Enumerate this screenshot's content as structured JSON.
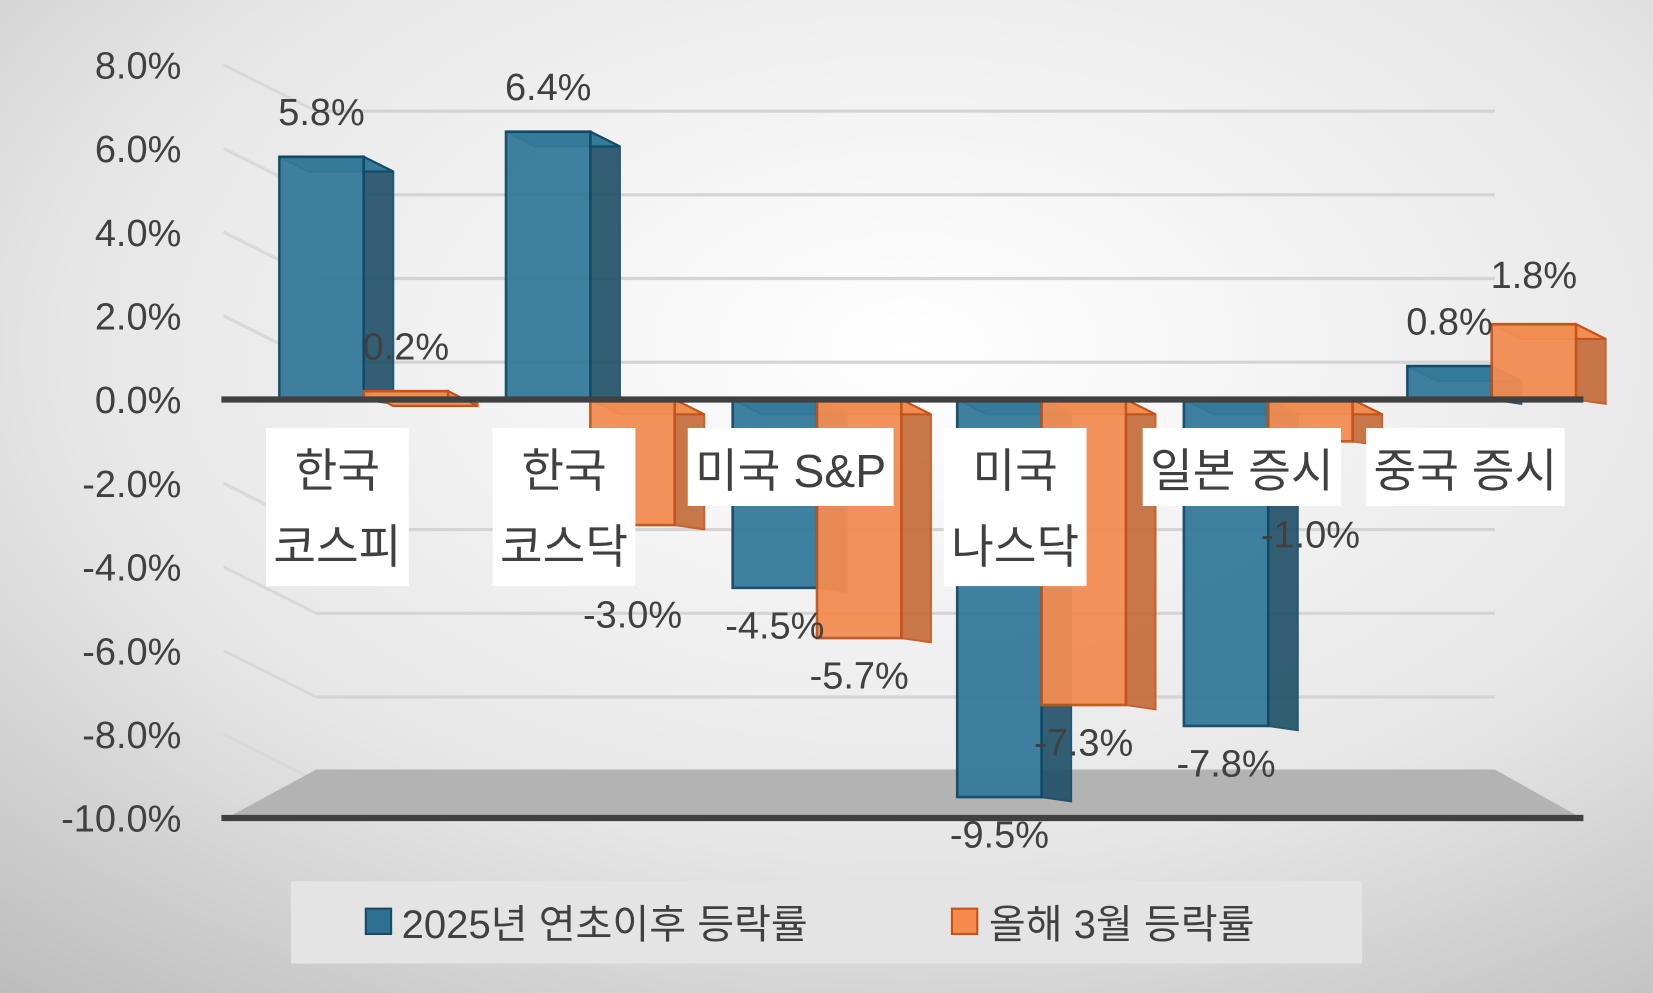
{
  "chart_data": {
    "type": "bar",
    "title": "",
    "categories": [
      [
        "한국",
        "코스피"
      ],
      [
        "한국",
        "코스닥"
      ],
      [
        "미국 S&P"
      ],
      [
        "미국",
        "나스닥"
      ],
      [
        "일본 증시"
      ],
      [
        "중국 증시"
      ]
    ],
    "series": [
      {
        "name": "2025년 연초이후 등락률",
        "color": "#2f6f8f",
        "values": [
          5.8,
          6.4,
          -4.5,
          -9.5,
          -7.8,
          0.8
        ],
        "labels": [
          "5.8%",
          "6.4%",
          "-4.5%",
          "-9.5%",
          "-7.8%",
          "0.8%"
        ]
      },
      {
        "name": "올해 3월 등락률",
        "color": "#f58a4b",
        "values": [
          0.2,
          -3.0,
          -5.7,
          -7.3,
          -1.0,
          1.8
        ],
        "labels": [
          "0.2%",
          "-3.0%",
          "-5.7%",
          "-7.3%",
          "-1.0%",
          "1.8%"
        ]
      }
    ],
    "ylim": [
      -10,
      8
    ],
    "yticks": [
      "8.0%",
      "6.0%",
      "4.0%",
      "2.0%",
      "0.0%",
      "-2.0%",
      "-4.0%",
      "-6.0%",
      "-8.0%",
      "-10.0%"
    ],
    "ytick_values": [
      8,
      6,
      4,
      2,
      0,
      -2,
      -4,
      -6,
      -8,
      -10
    ],
    "legend_position": "bottom",
    "grid": true
  }
}
